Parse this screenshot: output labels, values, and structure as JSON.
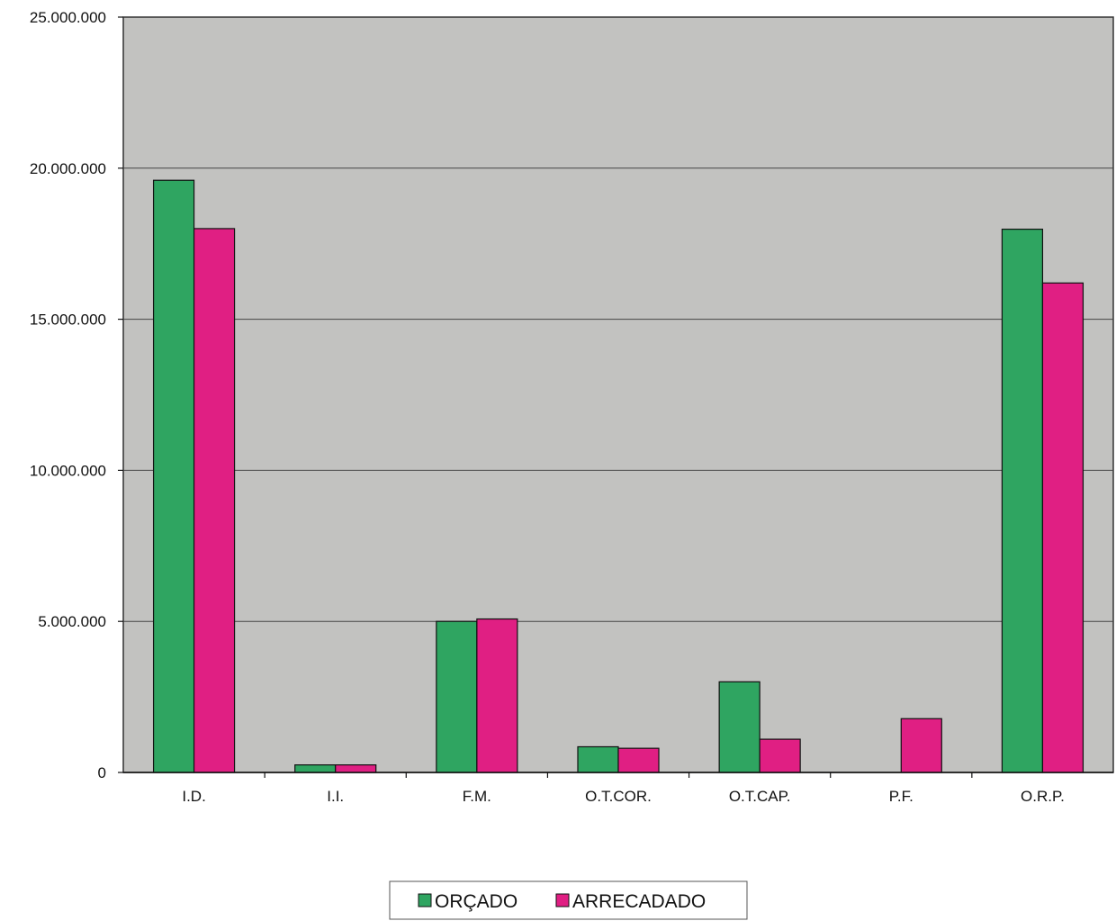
{
  "chart_data": {
    "type": "bar",
    "categories": [
      "I.D.",
      "I.I.",
      "F.M.",
      "O.T.COR.",
      "O.T.CAP.",
      "P.F.",
      "O.R.P."
    ],
    "series": [
      {
        "name": "ORÇADO",
        "color": "#2fa561",
        "values": [
          19600000,
          250000,
          5000000,
          850000,
          3000000,
          0,
          17980000
        ]
      },
      {
        "name": "ARRECADADO",
        "color": "#e01f83",
        "values": [
          18000000,
          250000,
          5080000,
          800000,
          1100000,
          1780000,
          16200000
        ]
      }
    ],
    "yticks": [
      "0",
      "5.000.000",
      "10.000.000",
      "15.000.000",
      "20.000.000",
      "25.000.000"
    ],
    "ylim": [
      0,
      25000000
    ],
    "grid": true,
    "legend_position": "bottom-center",
    "plot_background": "#c2c2c0"
  }
}
